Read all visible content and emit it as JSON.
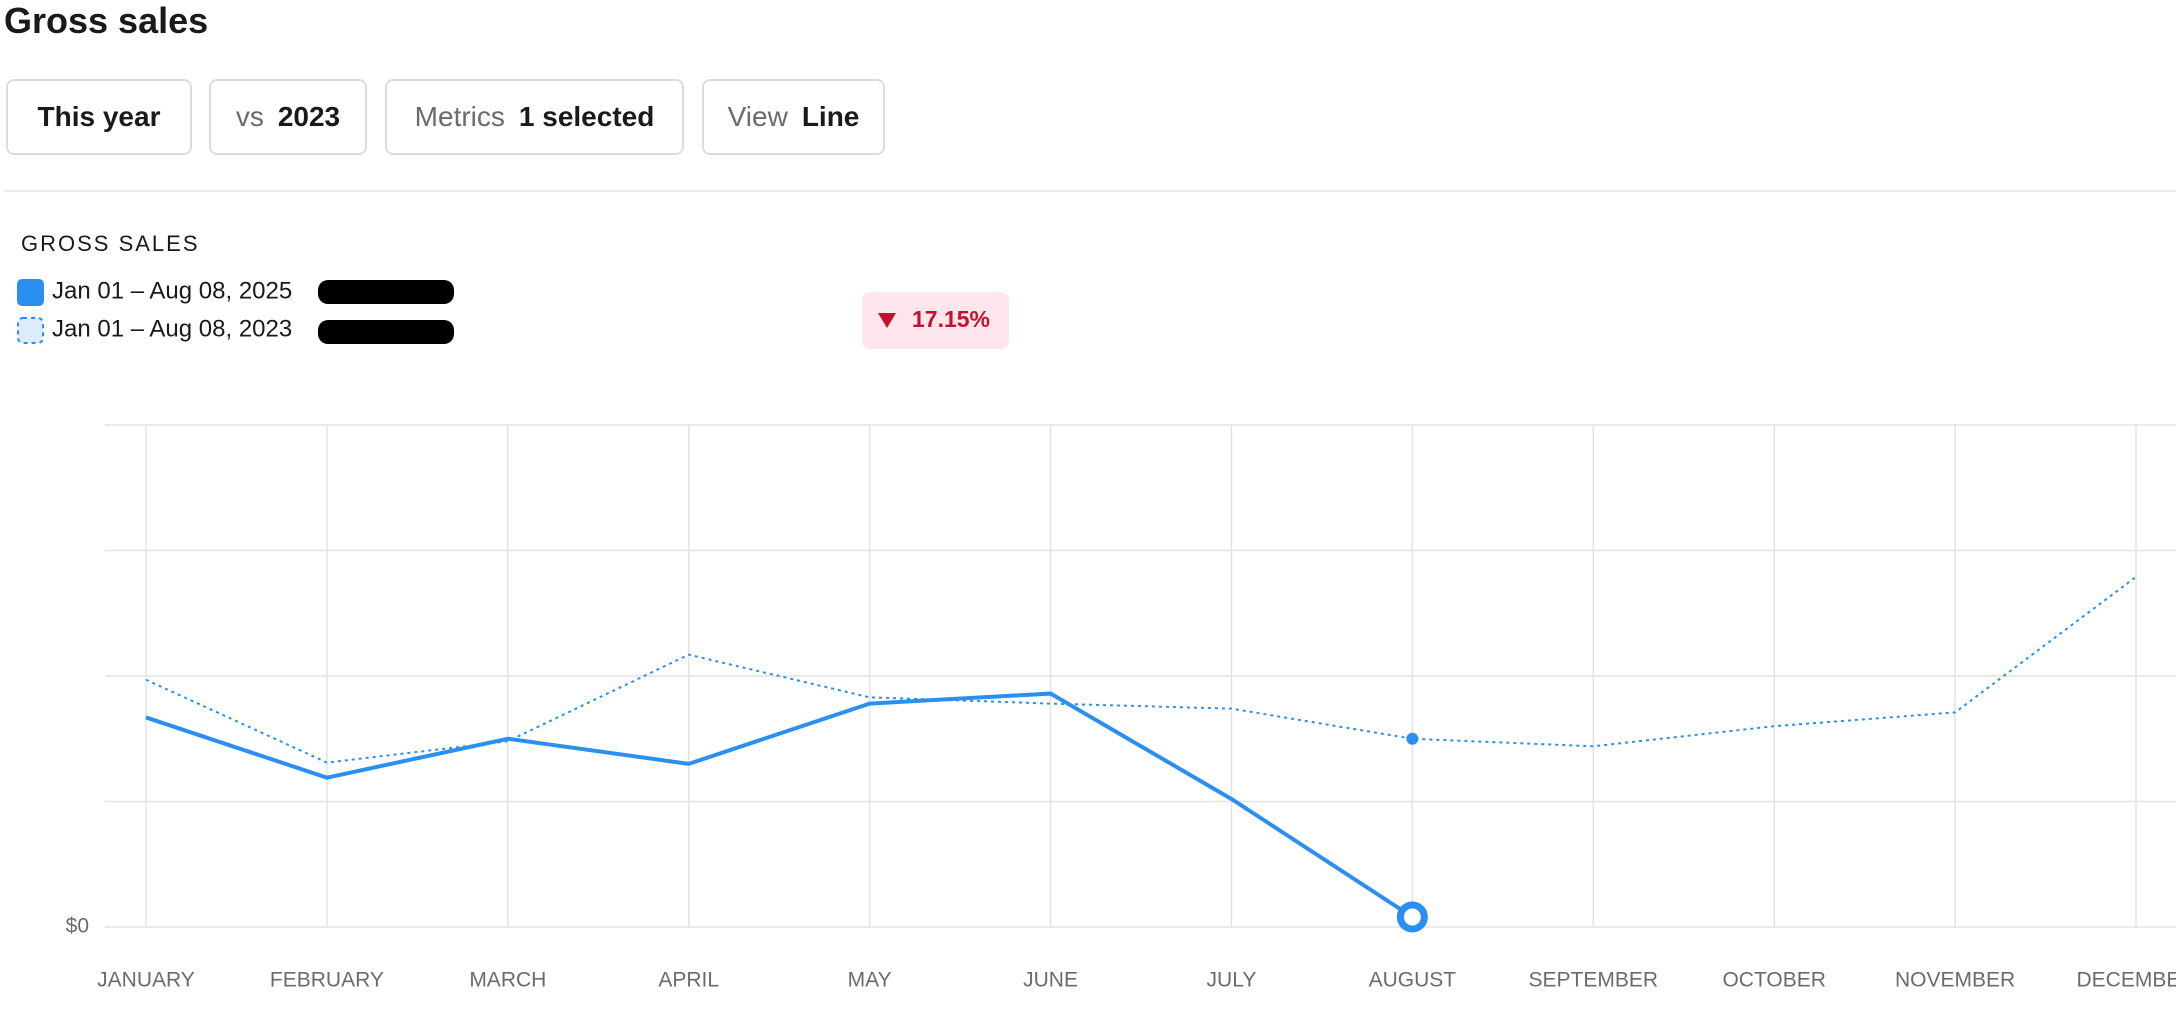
{
  "header": {
    "title": "Gross sales"
  },
  "filters": [
    {
      "key": null,
      "value": "This year"
    },
    {
      "key": "vs",
      "value": "2023"
    },
    {
      "key": "Metrics",
      "value": "1 selected"
    },
    {
      "key": "View",
      "value": "Line"
    }
  ],
  "chart_data": {
    "type": "line",
    "title": "GROSS SALES",
    "change": "17.15%",
    "change_direction": "down",
    "categories": [
      "JANUARY",
      "FEBRUARY",
      "MARCH",
      "APRIL",
      "MAY",
      "JUNE",
      "JULY",
      "AUGUST",
      "SEPTEMBER",
      "OCTOBER",
      "NOVEMBER",
      "DECEMBER"
    ],
    "series": [
      {
        "name": "Jan 01 – Aug 08, 2025",
        "color": "#2b8ff0",
        "style": "solid",
        "values": [
          1.67,
          1.19,
          1.5,
          1.3,
          1.78,
          1.86,
          1.02,
          0.08,
          null,
          null,
          null,
          null
        ]
      },
      {
        "name": "Jan 01 – Aug 08, 2023",
        "color": "#2b8ff0",
        "style": "dotted",
        "values": [
          1.97,
          1.31,
          1.48,
          2.17,
          1.83,
          1.78,
          1.74,
          1.5,
          1.44,
          1.6,
          1.71,
          2.79
        ]
      }
    ],
    "ylim": [
      0,
      4
    ],
    "yticks": [
      {
        "value": 0,
        "label": "$0"
      }
    ],
    "grid_values": [
      1,
      2,
      3,
      4
    ],
    "grid": true
  }
}
